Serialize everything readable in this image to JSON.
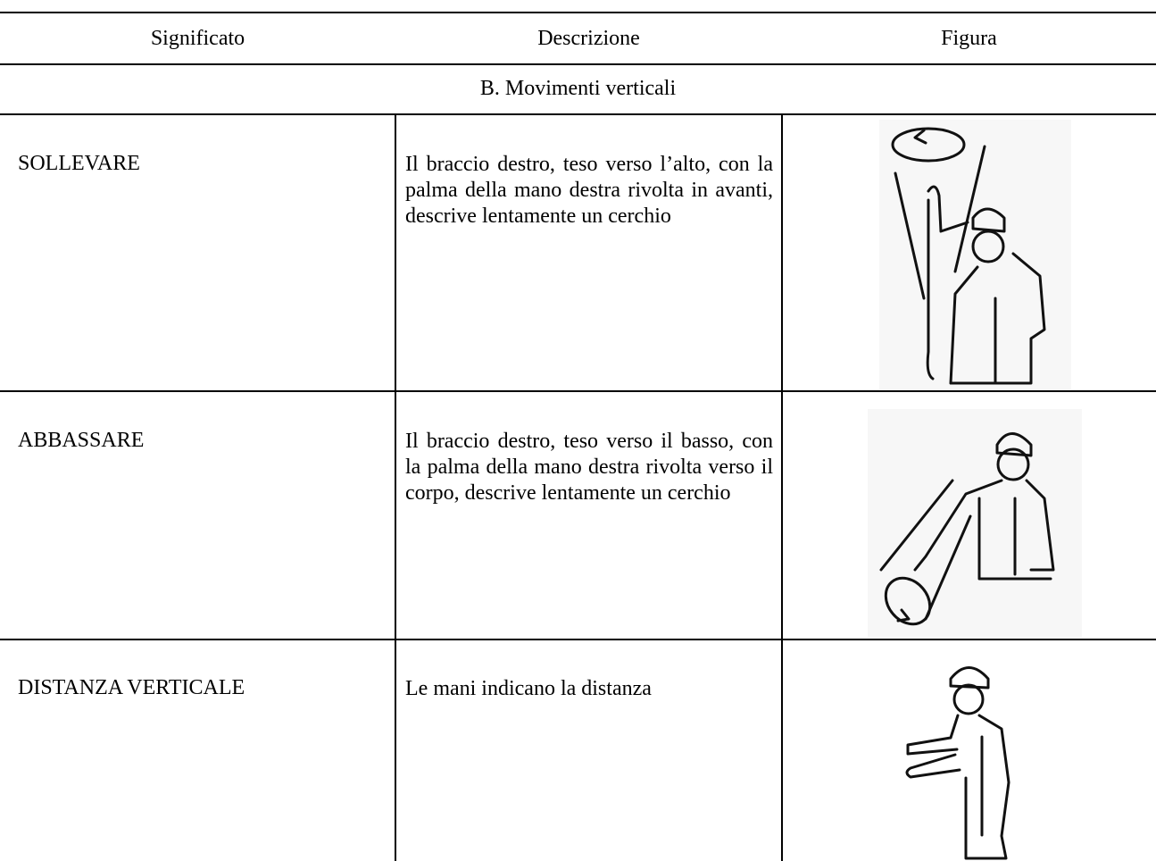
{
  "header": {
    "columns": [
      "Significato",
      "Descrizione",
      "Figura"
    ]
  },
  "section": "B. Movimenti verticali",
  "rows": [
    {
      "significato": "SOLLEVARE",
      "descrizione": "Il braccio destro, teso verso l’alto, con la palma della mano destra rivolta in avanti, descrive lentamente un cerchio"
    },
    {
      "significato": "ABBASSARE",
      "descrizione": "Il braccio destro, teso verso il basso, con la palma della mano destra rivolta verso il corpo, descrive lentamente un cerchio"
    },
    {
      "significato": "DISTANZA VERTICALE",
      "descrizione": "Le mani indicano la distanza"
    }
  ]
}
